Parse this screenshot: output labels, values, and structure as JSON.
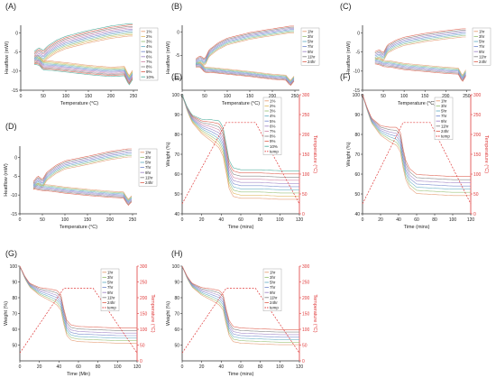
{
  "chart_data": [
    {
      "panel": "(A)",
      "type": "line",
      "xlabel": "Temperature (°C)",
      "ylabel": "Heatflow (mW)",
      "xlim": [
        0,
        260
      ],
      "ylim": [
        -15,
        2
      ],
      "xticks": [
        0,
        50,
        100,
        150,
        200,
        250
      ],
      "yticks": [
        -15,
        -10,
        -5,
        0
      ],
      "legend_position": "right",
      "series": [
        {
          "name": "1%",
          "color": "#e6a07a"
        },
        {
          "name": "2%",
          "color": "#e1bd6a"
        },
        {
          "name": "3%",
          "color": "#9dc37c"
        },
        {
          "name": "4%",
          "color": "#6fb3c8"
        },
        {
          "name": "5%",
          "color": "#7d8fcf"
        },
        {
          "name": "6%",
          "color": "#a58cc9"
        },
        {
          "name": "7%",
          "color": "#d28aa8"
        },
        {
          "name": "8%",
          "color": "#888888"
        },
        {
          "name": "9%",
          "color": "#e06a5a"
        },
        {
          "name": "10%",
          "color": "#54b0a0"
        }
      ],
      "heating_curve": {
        "x": [
          30,
          40,
          50,
          60,
          80,
          100,
          150,
          200,
          240,
          248
        ],
        "y": [
          -6.5,
          -5.5,
          -6.2,
          -5.0,
          -3.5,
          -2.5,
          -1.0,
          0.2,
          0.8,
          0.8
        ]
      },
      "cooling_curve": {
        "x": [
          248,
          240,
          230,
          200,
          150,
          100,
          70,
          50,
          40,
          30
        ],
        "y": [
          -11.0,
          -12.5,
          -10.0,
          -10.2,
          -9.7,
          -9.0,
          -8.6,
          -8.5,
          -7.2,
          -7.0
        ]
      },
      "spread": 0.45
    },
    {
      "panel": "(B)",
      "type": "line",
      "xlabel": "Temperature (°C)",
      "ylabel": "Heatflow (mW)",
      "xlim": [
        0,
        260
      ],
      "ylim": [
        -12.5,
        1.5
      ],
      "xticks": [
        0,
        50,
        100,
        150,
        200,
        250
      ],
      "yticks": [
        -10,
        -5,
        0
      ],
      "legend_position": "right",
      "series": [
        {
          "name": "1hr",
          "color": "#e6a07a"
        },
        {
          "name": "3hr",
          "color": "#9dc37c"
        },
        {
          "name": "5hr",
          "color": "#6fb3c8"
        },
        {
          "name": "7hr",
          "color": "#7d8fcf"
        },
        {
          "name": "9hr",
          "color": "#a58cc9"
        },
        {
          "name": "11hr",
          "color": "#888888"
        },
        {
          "name": "24hr",
          "color": "#e06a5a"
        }
      ],
      "heating_curve": {
        "x": [
          30,
          40,
          50,
          60,
          80,
          100,
          150,
          200,
          240,
          248
        ],
        "y": [
          -6.5,
          -5.8,
          -6.5,
          -4.5,
          -3.0,
          -2.0,
          -0.8,
          0.0,
          0.6,
          0.6
        ]
      },
      "cooling_curve": {
        "x": [
          248,
          240,
          230,
          200,
          150,
          100,
          70,
          50,
          40,
          30
        ],
        "y": [
          -10.0,
          -11.0,
          -9.8,
          -9.6,
          -9.0,
          -8.5,
          -8.2,
          -8.1,
          -7.0,
          -7.0
        ]
      },
      "spread": 0.3
    },
    {
      "panel": "(C)",
      "type": "line",
      "xlabel": "Temperature (°C)",
      "ylabel": "Heatflow (mW)",
      "xlim": [
        0,
        260
      ],
      "ylim": [
        -15,
        2
      ],
      "xticks": [
        0,
        50,
        100,
        150,
        200,
        250
      ],
      "yticks": [
        -15,
        -10,
        -5,
        0
      ],
      "legend_position": "right",
      "series": [
        {
          "name": "1hr",
          "color": "#e6a07a"
        },
        {
          "name": "3hr",
          "color": "#9dc37c"
        },
        {
          "name": "5hr",
          "color": "#6fb3c8"
        },
        {
          "name": "7hr",
          "color": "#7d8fcf"
        },
        {
          "name": "9hr",
          "color": "#a58cc9"
        },
        {
          "name": "11hr",
          "color": "#888888"
        },
        {
          "name": "24hr",
          "color": "#e06a5a"
        }
      ],
      "heating_curve": {
        "x": [
          30,
          40,
          50,
          60,
          80,
          100,
          150,
          200,
          240,
          248
        ],
        "y": [
          -6.0,
          -5.5,
          -6.3,
          -4.2,
          -3.0,
          -2.2,
          -1.2,
          -0.5,
          0.0,
          0.0
        ]
      },
      "cooling_curve": {
        "x": [
          248,
          240,
          230,
          200,
          150,
          100,
          70,
          50,
          40,
          30
        ],
        "y": [
          -10.5,
          -12.0,
          -10.0,
          -9.8,
          -9.3,
          -8.8,
          -8.2,
          -8.0,
          -7.5,
          -7.3
        ]
      },
      "spread": 0.45
    },
    {
      "panel": "(D)",
      "type": "line",
      "xlabel": "Temperature (°C)",
      "ylabel": "Heatflow (mW)",
      "xlim": [
        0,
        260
      ],
      "ylim": [
        -15,
        3
      ],
      "xticks": [
        0,
        50,
        100,
        150,
        200,
        250
      ],
      "yticks": [
        -15,
        -10,
        -5,
        0
      ],
      "legend_position": "right",
      "series": [
        {
          "name": "1hr",
          "color": "#e6a07a"
        },
        {
          "name": "3hr",
          "color": "#9dc37c"
        },
        {
          "name": "5hr",
          "color": "#6fb3c8"
        },
        {
          "name": "7hr",
          "color": "#7d8fcf"
        },
        {
          "name": "9hr",
          "color": "#a58cc9"
        },
        {
          "name": "11hr",
          "color": "#888888"
        },
        {
          "name": "24hr",
          "color": "#e06a5a"
        }
      ],
      "heating_curve": {
        "x": [
          30,
          40,
          50,
          60,
          80,
          100,
          150,
          200,
          240,
          248
        ],
        "y": [
          -7.5,
          -6.0,
          -7.0,
          -5.0,
          -3.2,
          -2.0,
          -0.8,
          0.5,
          1.2,
          1.2
        ]
      },
      "cooling_curve": {
        "x": [
          248,
          240,
          230,
          200,
          150,
          100,
          70,
          50,
          40,
          30
        ],
        "y": [
          -11.0,
          -12.0,
          -10.0,
          -9.8,
          -9.3,
          -8.7,
          -8.2,
          -8.0,
          -7.8,
          -7.5
        ]
      },
      "spread": 0.45
    },
    {
      "panel": "(E)",
      "type": "line",
      "xlabel": "Time (mins)",
      "ylabel": "Weight (%)",
      "y2label": "Temperature (°C)",
      "xlim": [
        0,
        120
      ],
      "ylim": [
        40,
        100
      ],
      "y2lim": [
        0,
        300
      ],
      "xticks": [
        0,
        20,
        40,
        60,
        80,
        100,
        120
      ],
      "yticks": [
        40,
        50,
        60,
        70,
        80,
        90,
        100
      ],
      "y2ticks": [
        0,
        50,
        100,
        150,
        200,
        250,
        300
      ],
      "legend_position": "right",
      "series": [
        {
          "name": "1%",
          "color": "#e6a07a"
        },
        {
          "name": "2%",
          "color": "#e1bd6a"
        },
        {
          "name": "3%",
          "color": "#9dc37c"
        },
        {
          "name": "4%",
          "color": "#6fb3c8"
        },
        {
          "name": "5%",
          "color": "#7d8fcf"
        },
        {
          "name": "6%",
          "color": "#a58cc9"
        },
        {
          "name": "7%",
          "color": "#d28aa8"
        },
        {
          "name": "8%",
          "color": "#888888"
        },
        {
          "name": "9%",
          "color": "#e06a5a"
        },
        {
          "name": "10%",
          "color": "#54b0a0"
        }
      ],
      "weight_curve": {
        "x": [
          0,
          5,
          10,
          20,
          30,
          38,
          42,
          45,
          48,
          52,
          60,
          80,
          100,
          120
        ],
        "y": [
          100,
          93,
          88,
          84,
          82,
          80,
          76,
          68,
          60,
          56,
          55,
          55,
          54.5,
          54.5
        ]
      },
      "temp_series": {
        "name": "temp",
        "color": "#e03c3c",
        "x": [
          0,
          45,
          75,
          120
        ],
        "y": [
          25,
          230,
          230,
          25
        ]
      },
      "spread": 1.6
    },
    {
      "panel": "(F)",
      "type": "line",
      "xlabel": "Time (mins)",
      "ylabel": "Weight (%)",
      "y2label": "Temperature (°C)",
      "xlim": [
        0,
        120
      ],
      "ylim": [
        40,
        100
      ],
      "y2lim": [
        0,
        300
      ],
      "xticks": [
        0,
        20,
        40,
        60,
        80,
        100,
        120
      ],
      "yticks": [
        40,
        50,
        60,
        70,
        80,
        90,
        100
      ],
      "y2ticks": [
        0,
        50,
        100,
        150,
        200,
        250,
        300
      ],
      "legend_position": "right",
      "series": [
        {
          "name": "1hr",
          "color": "#e6a07a"
        },
        {
          "name": "3hr",
          "color": "#9dc37c"
        },
        {
          "name": "5hr",
          "color": "#6fb3c8"
        },
        {
          "name": "7hr",
          "color": "#7d8fcf"
        },
        {
          "name": "9hr",
          "color": "#a58cc9"
        },
        {
          "name": "11hr",
          "color": "#888888"
        },
        {
          "name": "24hr",
          "color": "#e06a5a"
        }
      ],
      "weight_curve": {
        "x": [
          0,
          5,
          10,
          20,
          30,
          38,
          42,
          45,
          48,
          52,
          60,
          80,
          100,
          120
        ],
        "y": [
          100,
          93,
          87,
          82,
          80,
          79,
          76,
          68,
          62,
          58,
          55,
          54.5,
          54,
          54
        ]
      },
      "temp_series": {
        "name": "temp",
        "color": "#e03c3c",
        "x": [
          0,
          45,
          75,
          120
        ],
        "y": [
          25,
          230,
          230,
          25
        ]
      },
      "spread": 1.6
    },
    {
      "panel": "(G)",
      "type": "line",
      "xlabel": "Time (Min)",
      "ylabel": "Weight (%)",
      "y2label": "Temperature (°C)",
      "xlim": [
        0,
        120
      ],
      "ylim": [
        40,
        100
      ],
      "y2lim": [
        0,
        300
      ],
      "xticks": [
        0,
        20,
        40,
        60,
        80,
        100,
        120
      ],
      "yticks": [
        50,
        60,
        70,
        80,
        90,
        100
      ],
      "y2ticks": [
        0,
        50,
        100,
        150,
        200,
        250,
        300
      ],
      "legend_position": "top-right",
      "series": [
        {
          "name": "1hr",
          "color": "#e6a07a"
        },
        {
          "name": "3hr",
          "color": "#9dc37c"
        },
        {
          "name": "5hr",
          "color": "#6fb3c8"
        },
        {
          "name": "7hr",
          "color": "#7d8fcf"
        },
        {
          "name": "9hr",
          "color": "#a58cc9"
        },
        {
          "name": "11hr",
          "color": "#888888"
        },
        {
          "name": "24hr",
          "color": "#e06a5a"
        }
      ],
      "weight_curve": {
        "x": [
          0,
          5,
          10,
          20,
          30,
          38,
          42,
          45,
          48,
          52,
          60,
          80,
          100,
          120
        ],
        "y": [
          100,
          93,
          88,
          84,
          82,
          80,
          77,
          68,
          61,
          58,
          57,
          56.5,
          56,
          56
        ]
      },
      "temp_series": {
        "name": "temp",
        "color": "#e03c3c",
        "x": [
          0,
          45,
          75,
          120
        ],
        "y": [
          25,
          230,
          230,
          25
        ]
      },
      "spread": 1.6
    },
    {
      "panel": "(H)",
      "type": "line",
      "xlabel": "Time (mins)",
      "ylabel": "Weight (%)",
      "y2label": "Temperature (°C)",
      "xlim": [
        0,
        120
      ],
      "ylim": [
        40,
        100
      ],
      "y2lim": [
        0,
        300
      ],
      "xticks": [
        0,
        20,
        40,
        60,
        80,
        100,
        120
      ],
      "yticks": [
        50,
        60,
        70,
        80,
        90,
        100
      ],
      "y2ticks": [
        0,
        50,
        100,
        150,
        200,
        250,
        300
      ],
      "legend_position": "right",
      "series": [
        {
          "name": "1hr",
          "color": "#e6a07a"
        },
        {
          "name": "3hr",
          "color": "#9dc37c"
        },
        {
          "name": "5hr",
          "color": "#6fb3c8"
        },
        {
          "name": "7hr",
          "color": "#7d8fcf"
        },
        {
          "name": "9hr",
          "color": "#a58cc9"
        },
        {
          "name": "11hr",
          "color": "#888888"
        },
        {
          "name": "24hr",
          "color": "#e06a5a"
        }
      ],
      "weight_curve": {
        "x": [
          0,
          5,
          10,
          20,
          30,
          38,
          42,
          45,
          48,
          52,
          60,
          80,
          100,
          120
        ],
        "y": [
          100,
          93,
          88,
          84,
          82,
          80,
          77,
          68,
          61,
          57,
          56,
          55.5,
          55,
          55
        ]
      },
      "temp_series": {
        "name": "temp",
        "color": "#e03c3c",
        "x": [
          0,
          45,
          75,
          120
        ],
        "y": [
          25,
          230,
          230,
          25
        ]
      },
      "spread": 1.6
    }
  ]
}
